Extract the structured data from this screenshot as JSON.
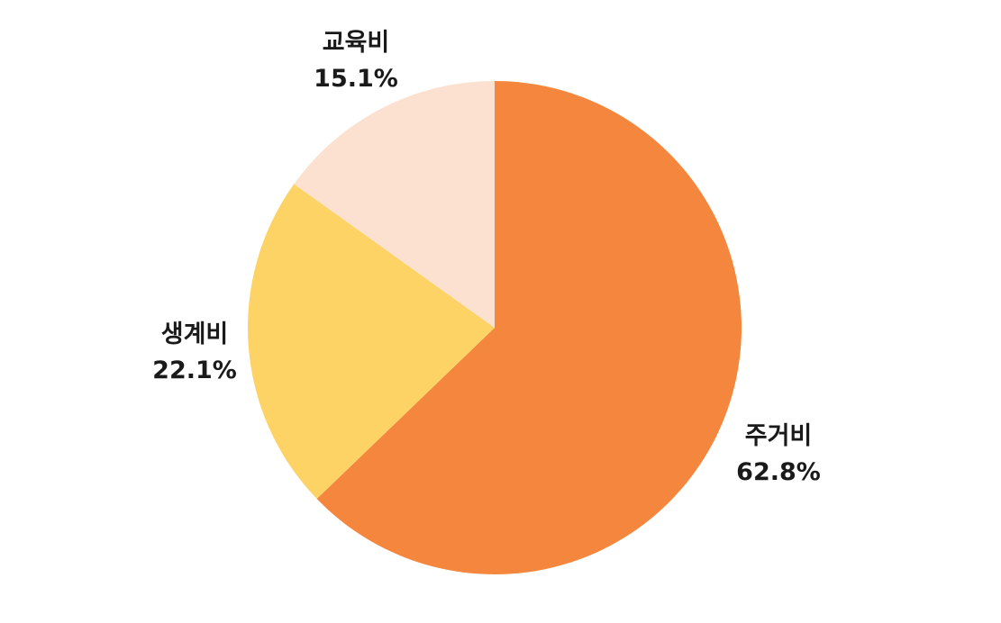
{
  "chart_data": {
    "type": "pie",
    "title": "",
    "start": "12 o'clock",
    "direction": "clockwise",
    "slices": [
      {
        "label": "주거비",
        "value": 62.8,
        "value_label": "62.8%",
        "color": "#F5863D"
      },
      {
        "label": "생계비",
        "value": 22.1,
        "value_label": "22.1%",
        "color": "#FDD365"
      },
      {
        "label": "교육비",
        "value": 15.1,
        "value_label": "15.1%",
        "color": "#FCE1D1"
      }
    ],
    "legend": "none"
  }
}
